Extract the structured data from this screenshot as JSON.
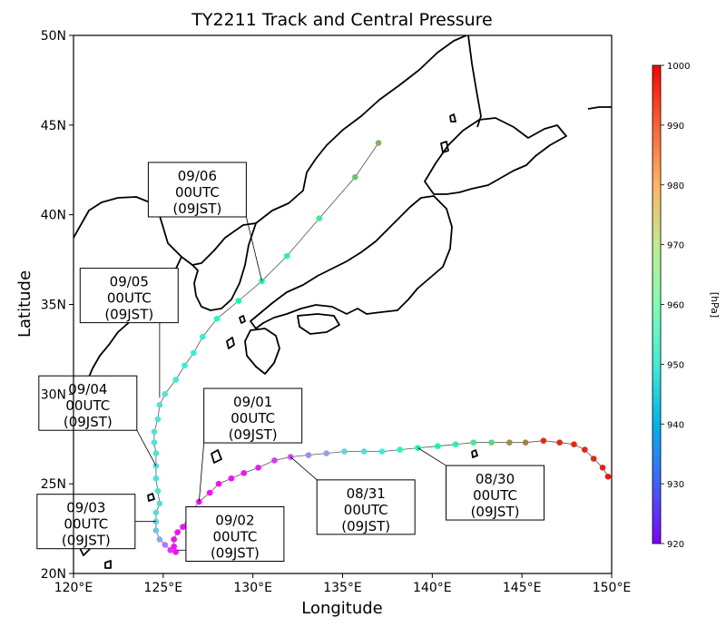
{
  "chart_data": {
    "type": "scatter",
    "title": "TY2211 Track and Central Pressure",
    "xlabel": "Longitude",
    "ylabel": "Latitude",
    "xlim": [
      120,
      150
    ],
    "ylim": [
      20,
      50
    ],
    "x_ticks": [
      {
        "value": 120,
        "label": "120°E"
      },
      {
        "value": 125,
        "label": "125°E"
      },
      {
        "value": 130,
        "label": "130°E"
      },
      {
        "value": 135,
        "label": "135°E"
      },
      {
        "value": 140,
        "label": "140°E"
      },
      {
        "value": 145,
        "label": "145°E"
      },
      {
        "value": 150,
        "label": "150°E"
      }
    ],
    "y_ticks": [
      {
        "value": 20,
        "label": "20N"
      },
      {
        "value": 25,
        "label": "25N"
      },
      {
        "value": 30,
        "label": "30N"
      },
      {
        "value": 35,
        "label": "35N"
      },
      {
        "value": 40,
        "label": "40N"
      },
      {
        "value": 45,
        "label": "45N"
      },
      {
        "value": 50,
        "label": "50N"
      }
    ],
    "grid": false,
    "colorbar": {
      "colormap": "rainbow",
      "min": 920,
      "max": 1000,
      "ticks": [
        "920",
        "930",
        "940",
        "950",
        "960",
        "970",
        "980",
        "990",
        "1000"
      ],
      "unit": "[hPa]"
    },
    "track_color": "#555555",
    "track": [
      {
        "lon": 149.8,
        "lat": 25.4,
        "p": 998
      },
      {
        "lon": 149.5,
        "lat": 25.9,
        "p": 997
      },
      {
        "lon": 149.0,
        "lat": 26.4,
        "p": 996
      },
      {
        "lon": 148.5,
        "lat": 26.9,
        "p": 996
      },
      {
        "lon": 147.9,
        "lat": 27.2,
        "p": 996
      },
      {
        "lon": 147.1,
        "lat": 27.3,
        "p": 996
      },
      {
        "lon": 146.2,
        "lat": 27.4,
        "p": 996
      },
      {
        "lon": 145.2,
        "lat": 27.3,
        "p": 987
      },
      {
        "lon": 144.3,
        "lat": 27.3,
        "p": 985
      },
      {
        "lon": 143.3,
        "lat": 27.3,
        "p": 975
      },
      {
        "lon": 142.3,
        "lat": 27.3,
        "p": 970
      },
      {
        "lon": 141.3,
        "lat": 27.2,
        "p": 965
      },
      {
        "lon": 140.3,
        "lat": 27.1,
        "p": 962
      },
      {
        "lon": 139.2,
        "lat": 27.0,
        "p": 958
      },
      {
        "lon": 138.2,
        "lat": 26.9,
        "p": 955
      },
      {
        "lon": 137.2,
        "lat": 26.8,
        "p": 952
      },
      {
        "lon": 136.2,
        "lat": 26.8,
        "p": 947
      },
      {
        "lon": 135.1,
        "lat": 26.8,
        "p": 944
      },
      {
        "lon": 134.1,
        "lat": 26.7,
        "p": 937
      },
      {
        "lon": 133.1,
        "lat": 26.6,
        "p": 934
      },
      {
        "lon": 132.1,
        "lat": 26.5,
        "p": 928
      },
      {
        "lon": 131.2,
        "lat": 26.3,
        "p": 925
      },
      {
        "lon": 130.3,
        "lat": 25.9,
        "p": 922
      },
      {
        "lon": 129.5,
        "lat": 25.6,
        "p": 921
      },
      {
        "lon": 128.8,
        "lat": 25.3,
        "p": 921
      },
      {
        "lon": 128.1,
        "lat": 25.0,
        "p": 921
      },
      {
        "lon": 127.6,
        "lat": 24.5,
        "p": 921
      },
      {
        "lon": 127.0,
        "lat": 24.0,
        "p": 921
      },
      {
        "lon": 126.5,
        "lat": 23.3,
        "p": 921
      },
      {
        "lon": 126.1,
        "lat": 22.6,
        "p": 921
      },
      {
        "lon": 125.8,
        "lat": 22.3,
        "p": 921
      },
      {
        "lon": 125.6,
        "lat": 21.9,
        "p": 921
      },
      {
        "lon": 125.6,
        "lat": 21.5,
        "p": 921
      },
      {
        "lon": 125.7,
        "lat": 21.2,
        "p": 921
      },
      {
        "lon": 125.4,
        "lat": 21.3,
        "p": 925
      },
      {
        "lon": 125.1,
        "lat": 21.6,
        "p": 932
      },
      {
        "lon": 124.8,
        "lat": 21.9,
        "p": 938
      },
      {
        "lon": 124.6,
        "lat": 22.4,
        "p": 942
      },
      {
        "lon": 124.6,
        "lat": 22.9,
        "p": 945
      },
      {
        "lon": 124.6,
        "lat": 23.4,
        "p": 946
      },
      {
        "lon": 124.8,
        "lat": 23.9,
        "p": 947
      },
      {
        "lon": 124.7,
        "lat": 24.6,
        "p": 948
      },
      {
        "lon": 124.6,
        "lat": 25.3,
        "p": 948
      },
      {
        "lon": 124.6,
        "lat": 26.0,
        "p": 948
      },
      {
        "lon": 124.6,
        "lat": 26.7,
        "p": 948
      },
      {
        "lon": 124.5,
        "lat": 27.3,
        "p": 948
      },
      {
        "lon": 124.5,
        "lat": 27.9,
        "p": 948
      },
      {
        "lon": 124.7,
        "lat": 28.6,
        "p": 948
      },
      {
        "lon": 124.8,
        "lat": 29.4,
        "p": 948
      },
      {
        "lon": 125.1,
        "lat": 30.0,
        "p": 948
      },
      {
        "lon": 125.7,
        "lat": 30.8,
        "p": 950
      },
      {
        "lon": 126.2,
        "lat": 31.6,
        "p": 951
      },
      {
        "lon": 126.7,
        "lat": 32.3,
        "p": 952
      },
      {
        "lon": 127.2,
        "lat": 33.2,
        "p": 953
      },
      {
        "lon": 128.0,
        "lat": 34.2,
        "p": 956
      },
      {
        "lon": 129.2,
        "lat": 35.2,
        "p": 958
      },
      {
        "lon": 130.5,
        "lat": 36.3,
        "p": 963
      },
      {
        "lon": 131.9,
        "lat": 37.7,
        "p": 966
      },
      {
        "lon": 133.7,
        "lat": 39.8,
        "p": 970
      },
      {
        "lon": 135.7,
        "lat": 42.1,
        "p": 977
      },
      {
        "lon": 137.0,
        "lat": 44.0,
        "p": 980
      }
    ],
    "annotations": [
      {
        "lines": [
          "08/30",
          "00UTC",
          "(09JST)"
        ],
        "lon": 139.2,
        "lat": 27.0,
        "box_lon": 143.5,
        "box_lat": 24.5
      },
      {
        "lines": [
          "08/31",
          "00UTC",
          "(09JST)"
        ],
        "lon": 132.1,
        "lat": 26.5,
        "box_lon": 136.3,
        "box_lat": 23.7
      },
      {
        "lines": [
          "09/01",
          "00UTC",
          "(09JST)"
        ],
        "lon": 127.0,
        "lat": 24.0,
        "box_lon": 130.0,
        "box_lat": 28.8
      },
      {
        "lines": [
          "09/02",
          "00UTC",
          "(09JST)"
        ],
        "lon": 125.8,
        "lat": 21.3,
        "box_lon": 129.0,
        "box_lat": 22.2
      },
      {
        "lines": [
          "09/03",
          "00UTC",
          "(09JST)"
        ],
        "lon": 124.6,
        "lat": 22.9,
        "box_lon": 120.7,
        "box_lat": 22.9
      },
      {
        "lines": [
          "09/04",
          "00UTC",
          "(09JST)"
        ],
        "lon": 124.6,
        "lat": 26.0,
        "box_lon": 120.8,
        "box_lat": 29.5
      },
      {
        "lines": [
          "09/05",
          "00UTC",
          "(09JST)"
        ],
        "lon": 124.8,
        "lat": 29.8,
        "box_lon": 123.1,
        "box_lat": 35.5
      },
      {
        "lines": [
          "09/06",
          "00UTC",
          "(09JST)"
        ],
        "lon": 130.5,
        "lat": 36.3,
        "box_lon": 126.9,
        "box_lat": 41.4
      }
    ]
  }
}
